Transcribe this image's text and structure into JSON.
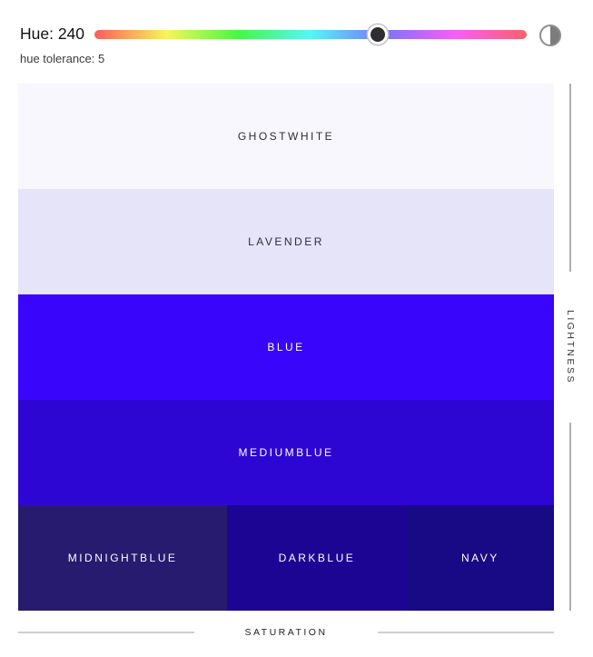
{
  "header": {
    "hue_label": "Hue: 240",
    "hue_value": 240,
    "hue_min": 0,
    "hue_max": 360,
    "thumb_left": "65.5%",
    "tolerance_label": "hue tolerance: 5",
    "tolerance_value": 5,
    "contrast_icon": "half-filled-circle"
  },
  "axes": {
    "y_label": "LIGHTNESS",
    "x_label": "SATURATION"
  },
  "grid": {
    "rows": [
      {
        "cells": [
          {
            "name": "GHOSTWHITE",
            "color": "#f7f7fd",
            "text_color": "#2d2d38",
            "width": "100%"
          }
        ]
      },
      {
        "cells": [
          {
            "name": "LAVENDER",
            "color": "#e5e4f9",
            "text_color": "#2d2d38",
            "width": "100%"
          }
        ]
      },
      {
        "cells": [
          {
            "name": "BLUE",
            "color": "#3a05fb",
            "text_color": "#ffffff",
            "width": "100%"
          }
        ]
      },
      {
        "cells": [
          {
            "name": "MEDIUMBLUE",
            "color": "#2e06d4",
            "text_color": "#ffffff",
            "width": "100%"
          }
        ]
      },
      {
        "cells": [
          {
            "name": "MIDNIGHTBLUE",
            "color": "#261b6e",
            "text_color": "#ffffff",
            "width": "39%"
          },
          {
            "name": "DARKBLUE",
            "color": "#1c0592",
            "text_color": "#ffffff",
            "width": "33.5%"
          },
          {
            "name": "NAVY",
            "color": "#180984",
            "text_color": "#ffffff",
            "width": "27.5%"
          }
        ]
      }
    ]
  }
}
